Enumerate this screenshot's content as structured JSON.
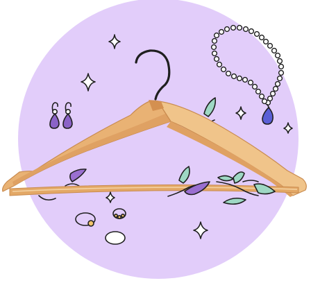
{
  "illustration": {
    "subject": "wooden-clothes-hanger",
    "colors": {
      "background": "#ffffff",
      "circle": "#e2cdfa",
      "wood_light": "#f0c48a",
      "wood_mid": "#dfa163",
      "wood_dark": "#c98b4f",
      "outline": "#1f1f1f",
      "leaf_green": "#9ed8c4",
      "leaf_purple": "#9a6fd0",
      "gem_purple": "#8b63c7",
      "gem_blue": "#5b5fd6",
      "gold": "#f1c46a"
    },
    "icons": [
      "hanger-icon",
      "earrings-icon",
      "necklace-icon",
      "leaf-vine-icon",
      "ring-icon",
      "sparkle-icon"
    ]
  }
}
